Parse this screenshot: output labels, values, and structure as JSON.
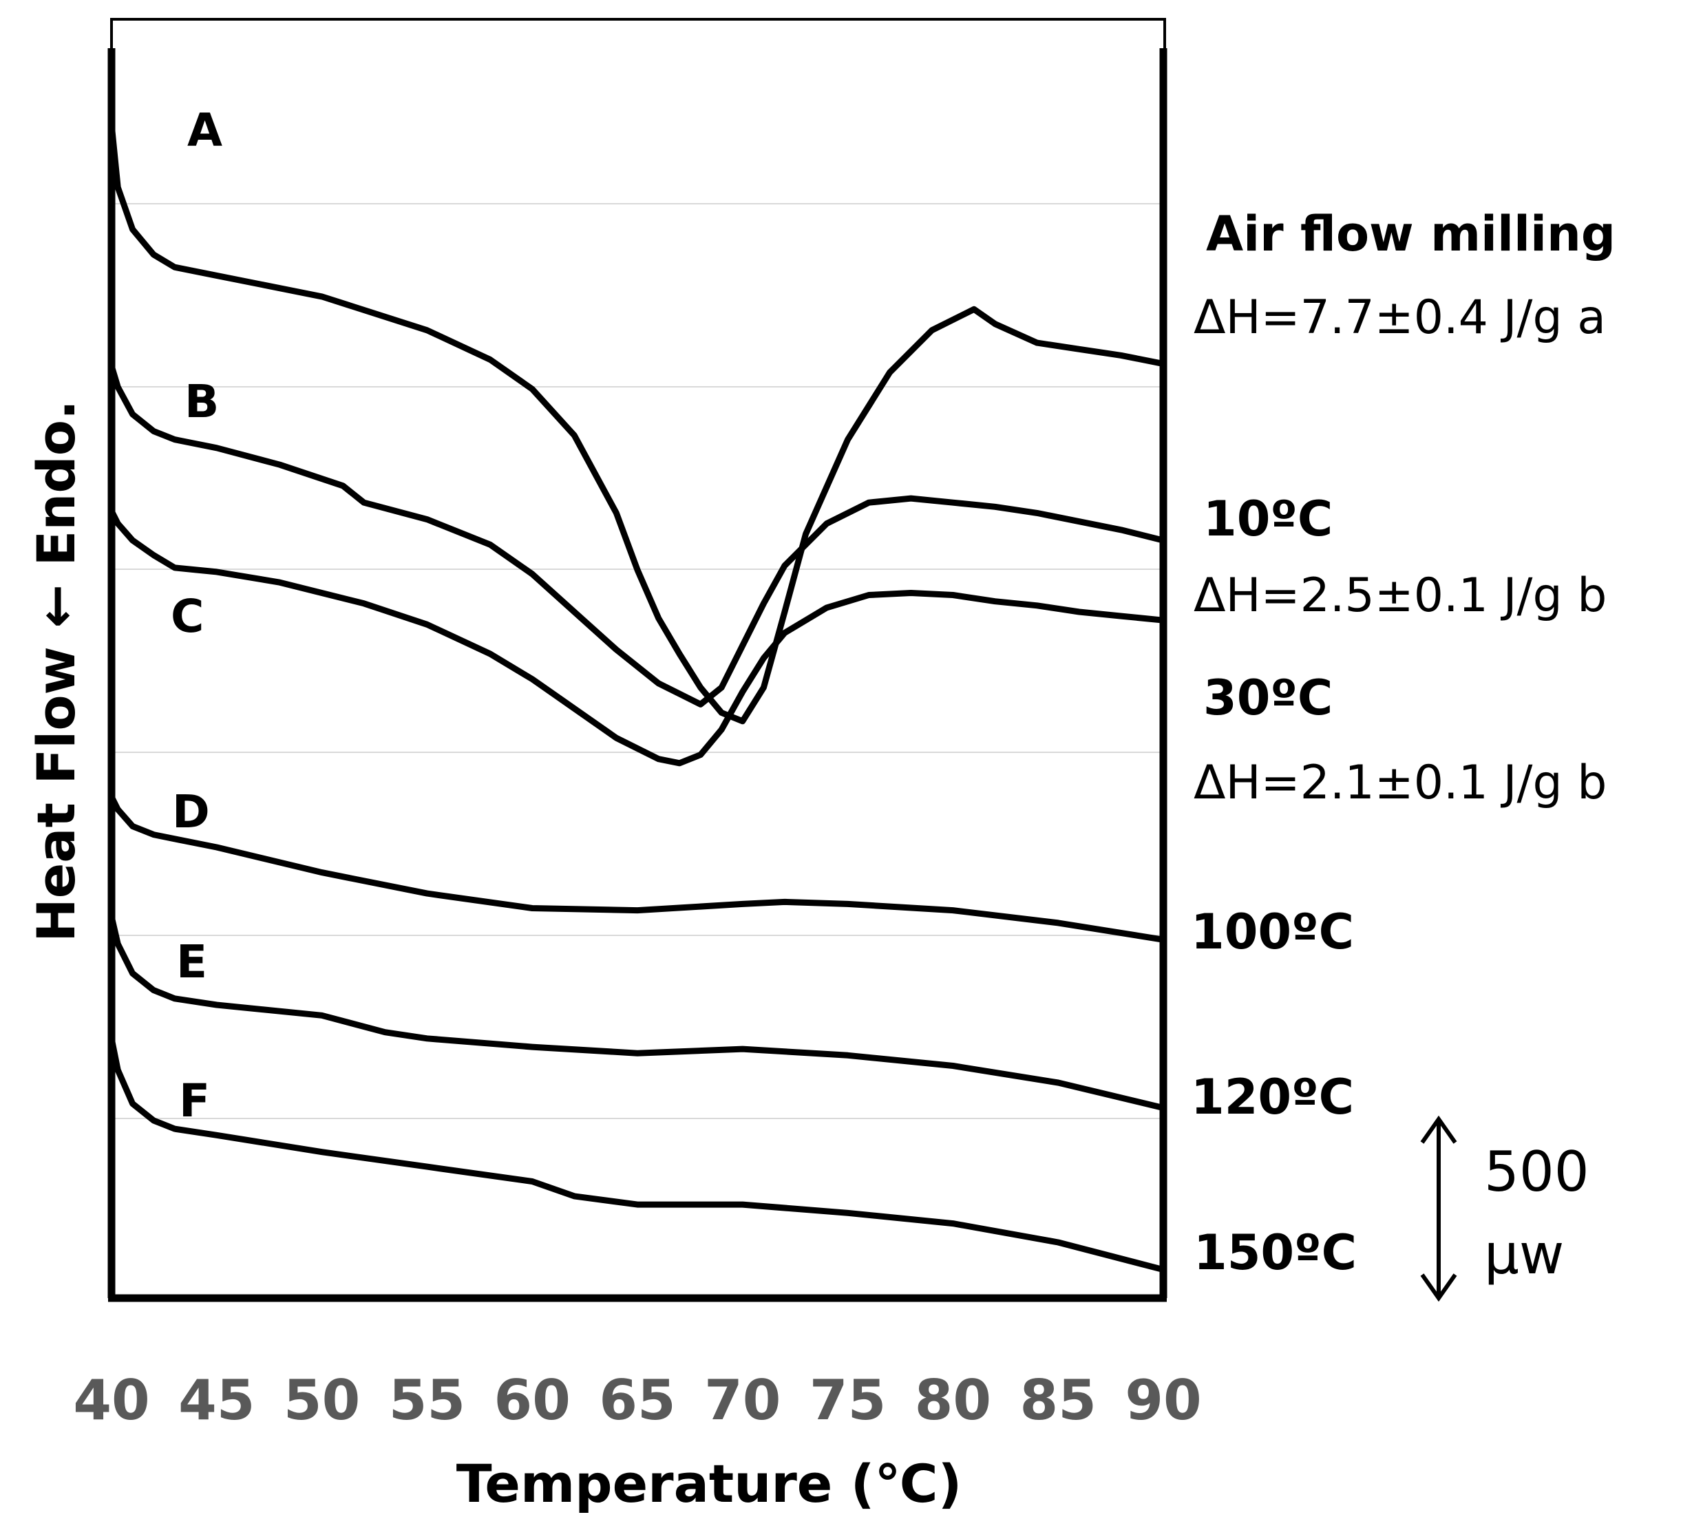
{
  "chart_data": {
    "type": "line",
    "title": "",
    "xlabel": "Temperature (℃)",
    "ylabel": "Heat Flow ← Endo.",
    "xlim": [
      40,
      90
    ],
    "xticks": [
      "40",
      "45",
      "50",
      "55",
      "60",
      "65",
      "70",
      "75",
      "80",
      "85",
      "90"
    ],
    "grid": true,
    "scale_bar": {
      "value": "500",
      "unit": "μw"
    },
    "series": [
      {
        "name": "A",
        "condition": "Air flow milling",
        "delta_h": "ΔH=7.7±0.4 J/g a",
        "x": [
          40,
          40.3,
          41,
          42,
          43,
          45,
          50,
          55,
          58,
          60,
          62,
          64,
          65,
          66,
          67,
          68,
          69,
          70,
          71,
          72,
          73,
          75,
          77,
          79,
          81,
          82,
          84,
          86,
          88,
          90
        ],
        "y": [
          2.9,
          2.6,
          2.4,
          2.28,
          2.22,
          2.18,
          2.08,
          1.92,
          1.78,
          1.64,
          1.42,
          1.05,
          0.78,
          0.55,
          0.38,
          0.22,
          0.1,
          0.06,
          0.22,
          0.58,
          0.95,
          1.4,
          1.72,
          1.92,
          2.02,
          1.95,
          1.86,
          1.83,
          1.8,
          1.76
        ]
      },
      {
        "name": "B",
        "condition": "10ºC",
        "delta_h": "ΔH=2.5±0.1 J/g b",
        "x": [
          40,
          40.3,
          41,
          42,
          43,
          45,
          48,
          51,
          52,
          55,
          58,
          60,
          62,
          64,
          66,
          68,
          69,
          70,
          71,
          72,
          74,
          76,
          78,
          80,
          82,
          84,
          86,
          88,
          90
        ],
        "y": [
          1.75,
          1.65,
          1.52,
          1.44,
          1.4,
          1.36,
          1.28,
          1.18,
          1.1,
          1.02,
          0.9,
          0.76,
          0.58,
          0.4,
          0.24,
          0.14,
          0.22,
          0.42,
          0.62,
          0.8,
          1.0,
          1.1,
          1.12,
          1.1,
          1.08,
          1.05,
          1.01,
          0.97,
          0.92
        ]
      },
      {
        "name": "C",
        "condition": "30ºC",
        "delta_h": "ΔH=2.1±0.1 J/g b",
        "x": [
          40,
          40.3,
          41,
          42,
          43,
          44,
          45,
          48,
          52,
          55,
          58,
          60,
          62,
          64,
          66,
          67,
          68,
          69,
          70,
          71,
          72,
          74,
          76,
          78,
          80,
          82,
          84,
          86,
          88,
          90
        ],
        "y": [
          1.06,
          1.0,
          0.92,
          0.85,
          0.79,
          0.78,
          0.77,
          0.72,
          0.62,
          0.52,
          0.38,
          0.26,
          0.12,
          -0.02,
          -0.12,
          -0.14,
          -0.1,
          0.02,
          0.2,
          0.36,
          0.48,
          0.6,
          0.66,
          0.67,
          0.66,
          0.63,
          0.61,
          0.58,
          0.56,
          0.54
        ]
      },
      {
        "name": "D",
        "condition": "100ºC",
        "delta_h": "",
        "x": [
          40,
          40.3,
          41,
          42,
          43,
          45,
          50,
          55,
          60,
          65,
          70,
          72,
          75,
          80,
          85,
          90
        ],
        "y": [
          -0.3,
          -0.36,
          -0.44,
          -0.48,
          -0.5,
          -0.54,
          -0.66,
          -0.76,
          -0.83,
          -0.84,
          -0.81,
          -0.8,
          -0.81,
          -0.84,
          -0.9,
          -0.98
        ]
      },
      {
        "name": "E",
        "condition": "120ºC",
        "delta_h": "",
        "x": [
          40,
          40.3,
          41,
          42,
          43,
          45,
          50,
          53,
          55,
          60,
          65,
          70,
          75,
          80,
          85,
          90
        ],
        "y": [
          -0.87,
          -1.0,
          -1.14,
          -1.22,
          -1.26,
          -1.29,
          -1.34,
          -1.42,
          -1.45,
          -1.49,
          -1.52,
          -1.5,
          -1.53,
          -1.58,
          -1.66,
          -1.78
        ]
      },
      {
        "name": "F",
        "condition": "150ºC",
        "delta_h": "",
        "x": [
          40,
          40.3,
          41,
          42,
          43,
          45,
          50,
          55,
          60,
          62,
          65,
          70,
          75,
          80,
          85,
          90
        ],
        "y": [
          -1.45,
          -1.6,
          -1.76,
          -1.84,
          -1.88,
          -1.91,
          -1.99,
          -2.06,
          -2.13,
          -2.2,
          -2.24,
          -2.24,
          -2.28,
          -2.33,
          -2.42,
          -2.55
        ]
      }
    ]
  }
}
